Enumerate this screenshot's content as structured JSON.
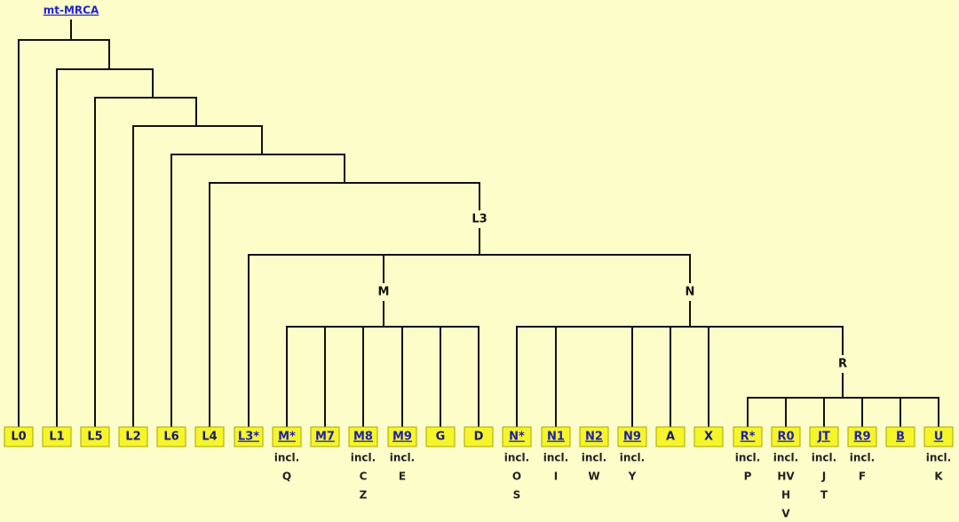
{
  "root": {
    "label": "mt-MRCA"
  },
  "clades": [
    {
      "label": "L3"
    },
    {
      "label": "M"
    },
    {
      "label": "N"
    },
    {
      "label": "R"
    }
  ],
  "leaves": [
    {
      "label": "L0"
    },
    {
      "label": "L1"
    },
    {
      "label": "L5"
    },
    {
      "label": "L2"
    },
    {
      "label": "L6"
    },
    {
      "label": "L4"
    },
    {
      "label": "L3*"
    },
    {
      "label": "M*",
      "notes": [
        "incl.",
        "Q"
      ]
    },
    {
      "label": "M7"
    },
    {
      "label": "M8",
      "notes": [
        "incl.",
        "C",
        "Z"
      ]
    },
    {
      "label": "M9",
      "notes": [
        "incl.",
        "E"
      ]
    },
    {
      "label": "G"
    },
    {
      "label": "D"
    },
    {
      "label": "N*",
      "notes": [
        "incl.",
        "O",
        "S"
      ]
    },
    {
      "label": "N1",
      "notes": [
        "incl.",
        "I"
      ]
    },
    {
      "label": "N2",
      "notes": [
        "incl.",
        "W"
      ]
    },
    {
      "label": "N9",
      "notes": [
        "incl.",
        "Y"
      ]
    },
    {
      "label": "A"
    },
    {
      "label": "X"
    },
    {
      "label": "R*",
      "notes": [
        "incl.",
        "P"
      ]
    },
    {
      "label": "R0",
      "notes": [
        "incl.",
        "HV",
        "H",
        "V"
      ]
    },
    {
      "label": "JT",
      "notes": [
        "incl.",
        "J",
        "T"
      ]
    },
    {
      "label": "R9",
      "notes": [
        "incl.",
        "F"
      ]
    },
    {
      "label": "B"
    },
    {
      "label": "U",
      "notes": [
        "incl.",
        "K"
      ]
    }
  ]
}
